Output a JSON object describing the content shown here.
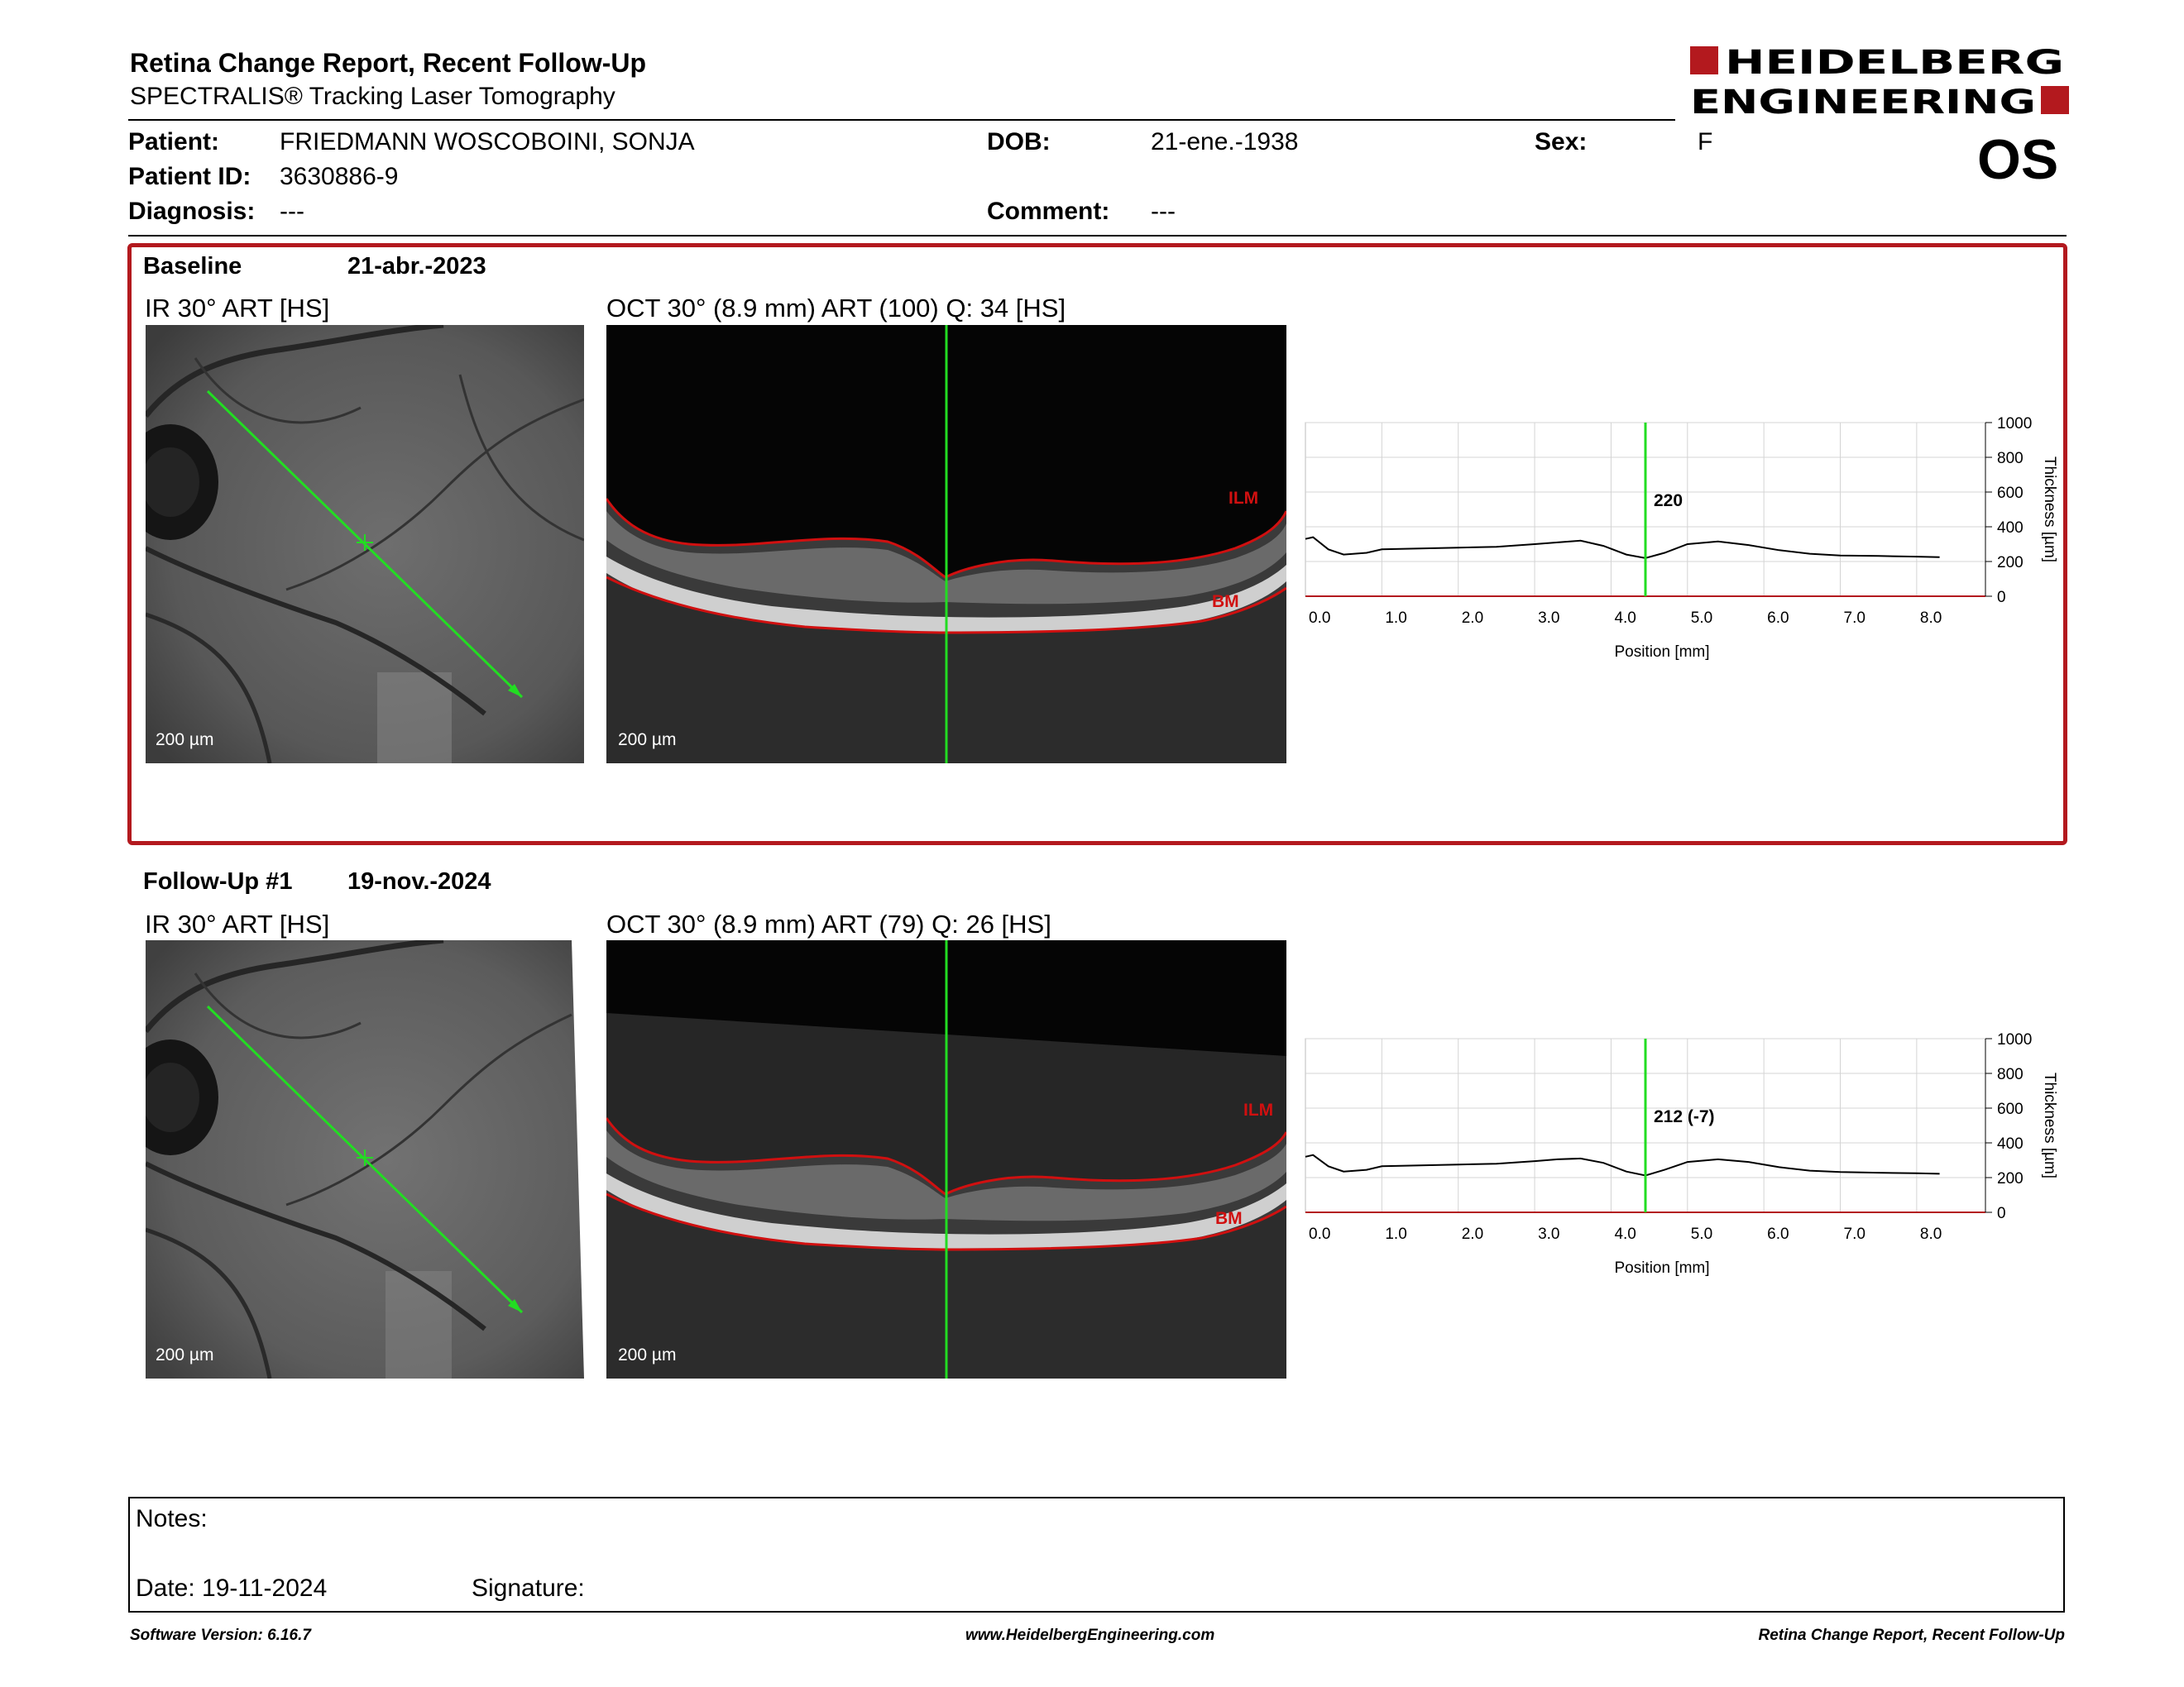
{
  "header": {
    "title": "Retina Change Report, Recent Follow-Up",
    "subtitle": "SPECTRALIS® Tracking Laser Tomography",
    "logo_text": "HEIDELBERG ENGINEERING",
    "eye": "OS"
  },
  "patient": {
    "patient_label": "Patient:",
    "patient_value": "FRIEDMANN WOSCOBOINI,  SONJA",
    "id_label": "Patient ID:",
    "id_value": "3630886-9",
    "diagnosis_label": "Diagnosis:",
    "diagnosis_value": "---",
    "dob_label": "DOB:",
    "dob_value": "21-ene.-1938",
    "comment_label": "Comment:",
    "comment_value": "---",
    "sex_label": "Sex:",
    "sex_value": "F"
  },
  "colors": {
    "accent": "#b3191e",
    "scan_line": "#22dd22",
    "layer_line": "#d01010"
  },
  "exams": [
    {
      "label": "Baseline",
      "date": "21-abr.-2023",
      "ir_title": "IR 30° ART [HS]",
      "oct_title": "OCT 30° (8.9 mm) ART (100) Q: 34 [HS]",
      "scale_ir": "200 µm",
      "scale_oct": "200 µm",
      "ilm": "ILM",
      "bm": "BM",
      "cursor_value": "220"
    },
    {
      "label": "Follow-Up #1",
      "date": "19-nov.-2024",
      "ir_title": "IR 30° ART [HS]",
      "oct_title": "OCT 30° (8.9 mm) ART (79) Q: 26 [HS]",
      "scale_ir": "200 µm",
      "scale_oct": "200 µm",
      "ilm": "ILM",
      "bm": "BM",
      "cursor_value": "212 (-7)"
    }
  ],
  "chart_data": [
    {
      "type": "line",
      "xlabel": "Position [mm]",
      "ylabel": "Thickness [µm]",
      "xlim": [
        0,
        8.9
      ],
      "ylim": [
        0,
        1000
      ],
      "xticks": [
        "0.0",
        "1.0",
        "2.0",
        "3.0",
        "4.0",
        "5.0",
        "6.0",
        "7.0",
        "8.0"
      ],
      "yticks": [
        "0",
        "200",
        "400",
        "600",
        "800",
        "1000"
      ],
      "cursor_x": 4.45,
      "cursor_label": "220",
      "series": [
        {
          "x": [
            0,
            0.1,
            0.3,
            0.5,
            0.8,
            1.0,
            1.5,
            2.0,
            2.5,
            3.0,
            3.3,
            3.6,
            3.9,
            4.2,
            4.45,
            4.7,
            5.0,
            5.4,
            5.8,
            6.2,
            6.6,
            7.0,
            7.5,
            8.0,
            8.3
          ],
          "y": [
            330,
            340,
            270,
            240,
            250,
            270,
            275,
            280,
            285,
            300,
            310,
            320,
            290,
            240,
            220,
            250,
            300,
            315,
            295,
            265,
            245,
            235,
            232,
            228,
            225
          ]
        }
      ]
    },
    {
      "type": "line",
      "xlabel": "Position [mm]",
      "ylabel": "Thickness [µm]",
      "xlim": [
        0,
        8.9
      ],
      "ylim": [
        0,
        1000
      ],
      "xticks": [
        "0.0",
        "1.0",
        "2.0",
        "3.0",
        "4.0",
        "5.0",
        "6.0",
        "7.0",
        "8.0"
      ],
      "yticks": [
        "0",
        "200",
        "400",
        "600",
        "800",
        "1000"
      ],
      "cursor_x": 4.45,
      "cursor_label": "212 (-7)",
      "series": [
        {
          "x": [
            0,
            0.1,
            0.3,
            0.5,
            0.8,
            1.0,
            1.5,
            2.0,
            2.5,
            3.0,
            3.3,
            3.6,
            3.9,
            4.2,
            4.45,
            4.7,
            5.0,
            5.4,
            5.8,
            6.2,
            6.6,
            7.0,
            7.5,
            8.0,
            8.3
          ],
          "y": [
            320,
            330,
            265,
            235,
            245,
            265,
            270,
            275,
            280,
            295,
            305,
            310,
            285,
            235,
            212,
            245,
            290,
            305,
            290,
            260,
            240,
            232,
            228,
            225,
            222
          ]
        }
      ]
    }
  ],
  "notes": {
    "notes_label": "Notes:",
    "date_label": "Date: 19-11-2024",
    "signature_label": "Signature:"
  },
  "footer": {
    "left": "Software Version: 6.16.7",
    "center": "www.HeidelbergEngineering.com",
    "right": "Retina Change Report, Recent Follow-Up"
  }
}
